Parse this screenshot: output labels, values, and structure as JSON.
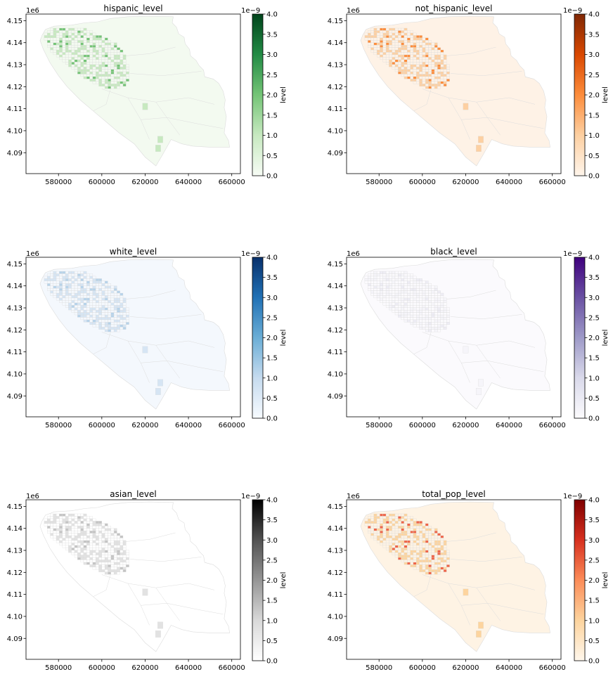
{
  "figure": {
    "scientific_offset_x_axis_label": "1e6",
    "scientific_offset_colorbar_label": "1e−9"
  },
  "chart_data": [
    {
      "type": "heatmap",
      "title": "hispanic_level",
      "colormap": "Greens",
      "xlim": [
        565000,
        664000
      ],
      "ylim": [
        4.0805,
        4.153
      ],
      "x_ticks": [
        "580000",
        "600000",
        "620000",
        "640000",
        "660000"
      ],
      "y_ticks": [
        "4.09",
        "4.10",
        "4.11",
        "4.12",
        "4.13",
        "4.14",
        "4.15"
      ],
      "colorbar": {
        "label": "level",
        "range": [
          0.0,
          4.0
        ],
        "ticks": [
          "0.0",
          "0.5",
          "1.0",
          "1.5",
          "2.0",
          "2.5",
          "3.0",
          "3.5",
          "4.0"
        ],
        "colors": [
          "#f7fcf5",
          "#c7e9c0",
          "#74c476",
          "#238b45",
          "#00441b"
        ]
      },
      "fill_color": "#f3faf0",
      "cell_color": "#c7e9c0",
      "hot_color": "#74c476"
    },
    {
      "type": "heatmap",
      "title": "not_hispanic_level",
      "colormap": "Oranges",
      "xlim": [
        565000,
        664000
      ],
      "ylim": [
        4.0805,
        4.153
      ],
      "x_ticks": [
        "580000",
        "600000",
        "620000",
        "640000",
        "660000"
      ],
      "y_ticks": [
        "4.09",
        "4.10",
        "4.11",
        "4.12",
        "4.13",
        "4.14",
        "4.15"
      ],
      "colorbar": {
        "label": "level",
        "range": [
          0.0,
          4.0
        ],
        "ticks": [
          "0.0",
          "0.5",
          "1.0",
          "1.5",
          "2.0",
          "2.5",
          "3.0",
          "3.5",
          "4.0"
        ],
        "colors": [
          "#fff5eb",
          "#fdd0a2",
          "#fd8d3c",
          "#d94801",
          "#7f2704"
        ]
      },
      "fill_color": "#fef2e6",
      "cell_color": "#fdd0a2",
      "hot_color": "#fd8d3c"
    },
    {
      "type": "heatmap",
      "title": "white_level",
      "colormap": "Blues",
      "xlim": [
        565000,
        664000
      ],
      "ylim": [
        4.0805,
        4.153
      ],
      "x_ticks": [
        "580000",
        "600000",
        "620000",
        "640000",
        "660000"
      ],
      "y_ticks": [
        "4.09",
        "4.10",
        "4.11",
        "4.12",
        "4.13",
        "4.14",
        "4.15"
      ],
      "colorbar": {
        "label": "level",
        "range": [
          0.0,
          4.0
        ],
        "ticks": [
          "0.0",
          "0.5",
          "1.0",
          "1.5",
          "2.0",
          "2.5",
          "3.0",
          "3.5",
          "4.0"
        ],
        "colors": [
          "#f7fbff",
          "#c6dbef",
          "#6baed6",
          "#2171b5",
          "#08306b"
        ]
      },
      "fill_color": "#f4f8fd",
      "cell_color": "#d6e5f4",
      "hot_color": "#b7d3ea"
    },
    {
      "type": "heatmap",
      "title": "black_level",
      "colormap": "Purples",
      "xlim": [
        565000,
        664000
      ],
      "ylim": [
        4.0805,
        4.153
      ],
      "x_ticks": [
        "580000",
        "600000",
        "620000",
        "640000",
        "660000"
      ],
      "y_ticks": [
        "4.09",
        "4.10",
        "4.11",
        "4.12",
        "4.13",
        "4.14",
        "4.15"
      ],
      "colorbar": {
        "label": "level",
        "range": [
          0.0,
          4.0
        ],
        "ticks": [
          "0.0",
          "0.5",
          "1.0",
          "1.5",
          "2.0",
          "2.5",
          "3.0",
          "3.5",
          "4.0"
        ],
        "colors": [
          "#fcfbfd",
          "#dadaeb",
          "#9e9ac8",
          "#6a51a3",
          "#3f007d"
        ]
      },
      "fill_color": "#fbfafd",
      "cell_color": "#f6f5fa",
      "hot_color": "#eeedf5"
    },
    {
      "type": "heatmap",
      "title": "asian_level",
      "colormap": "Greys",
      "xlim": [
        565000,
        664000
      ],
      "ylim": [
        4.0805,
        4.153
      ],
      "x_ticks": [
        "580000",
        "600000",
        "620000",
        "640000",
        "660000"
      ],
      "y_ticks": [
        "4.09",
        "4.10",
        "4.11",
        "4.12",
        "4.13",
        "4.14",
        "4.15"
      ],
      "colorbar": {
        "label": "level",
        "range": [
          0.0,
          4.0
        ],
        "ticks": [
          "0.0",
          "0.5",
          "1.0",
          "1.5",
          "2.0",
          "2.5",
          "3.0",
          "3.5",
          "4.0"
        ],
        "colors": [
          "#ffffff",
          "#d9d9d9",
          "#969696",
          "#525252",
          "#000000"
        ]
      },
      "fill_color": "#ffffff",
      "cell_color": "#e2e2e2",
      "hot_color": "#c4c4c4"
    },
    {
      "type": "heatmap",
      "title": "total_pop_level",
      "colormap": "OrRd",
      "xlim": [
        565000,
        664000
      ],
      "ylim": [
        4.0805,
        4.153
      ],
      "x_ticks": [
        "580000",
        "600000",
        "620000",
        "640000",
        "660000"
      ],
      "y_ticks": [
        "4.09",
        "4.10",
        "4.11",
        "4.12",
        "4.13",
        "4.14",
        "4.15"
      ],
      "colorbar": {
        "label": "level",
        "range": [
          0.0,
          4.0
        ],
        "ticks": [
          "0.0",
          "0.5",
          "1.0",
          "1.5",
          "2.0",
          "2.5",
          "3.0",
          "3.5",
          "4.0"
        ],
        "colors": [
          "#fff7ec",
          "#fdd49e",
          "#fc8d59",
          "#d7301f",
          "#7f0000"
        ]
      },
      "fill_color": "#fef3e4",
      "cell_color": "#fdd49e",
      "hot_color": "#ef6548"
    }
  ]
}
